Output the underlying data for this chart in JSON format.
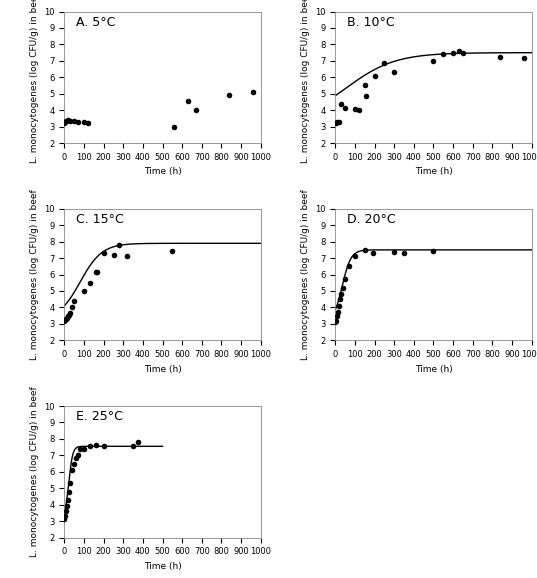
{
  "panels": [
    {
      "label": "A. 5°C",
      "scatter_x": [
        0,
        5,
        10,
        20,
        30,
        50,
        70,
        100,
        120,
        560,
        630,
        670,
        840,
        960
      ],
      "scatter_y": [
        3.2,
        3.3,
        3.35,
        3.4,
        3.35,
        3.35,
        3.3,
        3.3,
        3.2,
        3.0,
        4.55,
        4.0,
        4.95,
        5.1
      ],
      "has_curve": false,
      "xlim": [
        0,
        1000
      ],
      "ylim": [
        2,
        10
      ],
      "yticks": [
        2,
        3,
        4,
        5,
        6,
        7,
        8,
        9,
        10
      ],
      "xticks": [
        0,
        100,
        200,
        300,
        400,
        500,
        600,
        700,
        800,
        900,
        1000
      ]
    },
    {
      "label": "B. 10°C",
      "scatter_x": [
        0,
        5,
        10,
        20,
        30,
        50,
        100,
        120,
        150,
        155,
        200,
        250,
        300,
        500,
        550,
        600,
        630,
        650,
        840,
        960
      ],
      "scatter_y": [
        3.2,
        3.25,
        3.3,
        3.3,
        4.4,
        4.15,
        4.1,
        4.0,
        5.55,
        4.85,
        6.1,
        6.9,
        6.35,
        7.0,
        7.4,
        7.5,
        7.6,
        7.5,
        7.25,
        7.15
      ],
      "has_curve": true,
      "curve_params": {
        "y0": 3.2,
        "ymax": 7.5,
        "k": 0.008,
        "t0": 55
      },
      "xlim": [
        0,
        1000
      ],
      "ylim": [
        2,
        10
      ],
      "yticks": [
        2,
        3,
        4,
        5,
        6,
        7,
        8,
        9,
        10
      ],
      "xticks": [
        0,
        100,
        200,
        300,
        400,
        500,
        600,
        700,
        800,
        900,
        1000
      ]
    },
    {
      "label": "C. 15°C",
      "scatter_x": [
        0,
        5,
        10,
        15,
        20,
        25,
        30,
        40,
        50,
        100,
        130,
        160,
        165,
        200,
        250,
        280,
        320,
        550
      ],
      "scatter_y": [
        3.2,
        3.25,
        3.3,
        3.35,
        3.45,
        3.55,
        3.65,
        4.05,
        4.4,
        5.0,
        5.5,
        6.15,
        6.15,
        7.3,
        7.2,
        7.8,
        7.15,
        7.45
      ],
      "has_curve": true,
      "curve_params": {
        "y0": 3.2,
        "ymax": 7.9,
        "k": 0.018,
        "t0": 80
      },
      "xlim": [
        0,
        1000
      ],
      "ylim": [
        2,
        10
      ],
      "yticks": [
        2,
        3,
        4,
        5,
        6,
        7,
        8,
        9,
        10
      ],
      "xticks": [
        0,
        100,
        200,
        300,
        400,
        500,
        600,
        700,
        800,
        900,
        1000
      ]
    },
    {
      "label": "D. 20°C",
      "scatter_x": [
        0,
        5,
        10,
        15,
        20,
        25,
        30,
        40,
        50,
        70,
        100,
        150,
        190,
        300,
        350,
        500
      ],
      "scatter_y": [
        3.1,
        3.2,
        3.5,
        3.7,
        4.1,
        4.5,
        4.8,
        5.2,
        5.7,
        6.5,
        7.15,
        7.5,
        7.3,
        7.35,
        7.3,
        7.45
      ],
      "has_curve": true,
      "curve_params": {
        "y0": 3.1,
        "ymax": 7.5,
        "k": 0.045,
        "t0": 35
      },
      "xlim": [
        0,
        1000
      ],
      "ylim": [
        2,
        10
      ],
      "yticks": [
        2,
        3,
        4,
        5,
        6,
        7,
        8,
        9,
        10
      ],
      "xticks": [
        0,
        100,
        200,
        300,
        400,
        500,
        600,
        700,
        800,
        900,
        1000
      ]
    },
    {
      "label": "E. 25°C",
      "scatter_x": [
        0,
        5,
        10,
        15,
        20,
        25,
        30,
        40,
        50,
        60,
        70,
        80,
        100,
        130,
        160,
        200,
        350,
        375
      ],
      "scatter_y": [
        3.1,
        3.3,
        3.6,
        3.9,
        4.3,
        4.8,
        5.3,
        6.1,
        6.5,
        6.85,
        7.0,
        7.4,
        7.4,
        7.55,
        7.65,
        7.55,
        7.55,
        7.8
      ],
      "has_curve": true,
      "curve_params": {
        "y0": 3.1,
        "ymax": 7.55,
        "k": 0.1,
        "t0": 22
      },
      "curve_xlim": 500,
      "xlim": [
        0,
        1000
      ],
      "ylim": [
        2,
        10
      ],
      "yticks": [
        2,
        3,
        4,
        5,
        6,
        7,
        8,
        9,
        10
      ],
      "xticks": [
        0,
        100,
        200,
        300,
        400,
        500,
        600,
        700,
        800,
        900,
        1000
      ]
    }
  ],
  "ylabel": "L. monocytogenes (log CFU/g) in beef",
  "xlabel": "Time (h)",
  "marker_color": "black",
  "marker_size": 4,
  "line_color": "black",
  "line_width": 1.0,
  "tick_fontsize": 6,
  "label_fontsize": 9,
  "axis_label_fontsize": 6.5
}
